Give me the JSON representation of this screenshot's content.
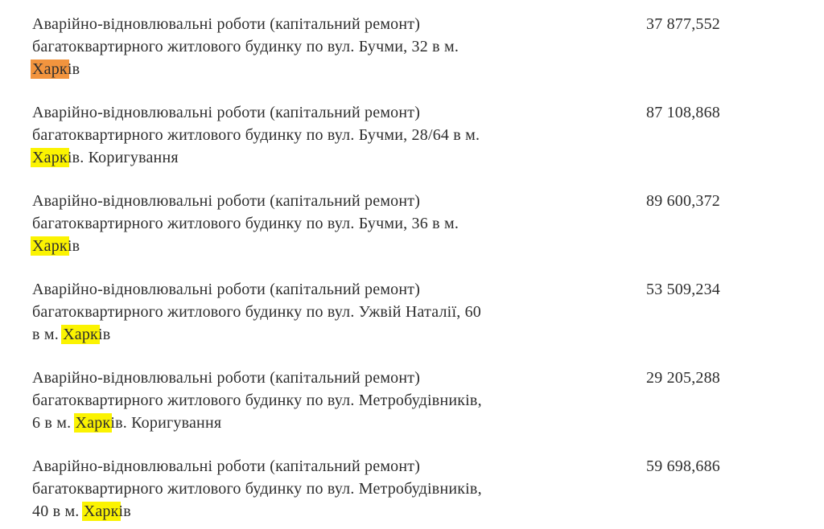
{
  "page": {
    "background": "#ffffff",
    "text_color": "#2e2e2e"
  },
  "search": {
    "term": "Харк",
    "active_highlight_color": "#f2943e",
    "match_highlight_color": "#fbf301"
  },
  "rows": [
    {
      "amount": "37 877,552",
      "lines": [
        [
          {
            "t": "Аварійно-відновлювальні роботи (капітальний ремонт)"
          }
        ],
        [
          {
            "t": "багатоквартирного житлового будинку по вул. Бучми, 32 в м."
          }
        ],
        [
          {
            "t": "Харк",
            "h": "active"
          },
          {
            "t": "ів"
          }
        ]
      ]
    },
    {
      "amount": "87 108,868",
      "lines": [
        [
          {
            "t": "Аварійно-відновлювальні роботи (капітальний ремонт)"
          }
        ],
        [
          {
            "t": "багатоквартирного житлового будинку по вул. Бучми, 28/64 в м."
          }
        ],
        [
          {
            "t": "Харк",
            "h": "match"
          },
          {
            "t": "ів. Коригування"
          }
        ]
      ]
    },
    {
      "amount": "89 600,372",
      "lines": [
        [
          {
            "t": "Аварійно-відновлювальні роботи (капітальний ремонт)"
          }
        ],
        [
          {
            "t": "багатоквартирного житлового будинку по вул. Бучми, 36 в м."
          }
        ],
        [
          {
            "t": "Харк",
            "h": "match"
          },
          {
            "t": "ів"
          }
        ]
      ]
    },
    {
      "amount": "53 509,234",
      "lines": [
        [
          {
            "t": "Аварійно-відновлювальні роботи (капітальний ремонт)"
          }
        ],
        [
          {
            "t": "багатоквартирного житлового будинку по вул. Ужвій Наталії, 60"
          }
        ],
        [
          {
            "t": "в м. "
          },
          {
            "t": "Харк",
            "h": "match"
          },
          {
            "t": "ів"
          }
        ]
      ]
    },
    {
      "amount": "29 205,288",
      "lines": [
        [
          {
            "t": "Аварійно-відновлювальні роботи (капітальний ремонт)"
          }
        ],
        [
          {
            "t": "багатоквартирного житлового будинку по вул. Метробудівників,"
          }
        ],
        [
          {
            "t": "6 в м. "
          },
          {
            "t": "Харк",
            "h": "match"
          },
          {
            "t": "ів. Коригування"
          }
        ]
      ]
    },
    {
      "amount": "59 698,686",
      "lines": [
        [
          {
            "t": "Аварійно-відновлювальні роботи (капітальний ремонт)"
          }
        ],
        [
          {
            "t": "багатоквартирного житлового будинку по вул. Метробудівників,"
          }
        ],
        [
          {
            "t": "40 в м. "
          },
          {
            "t": "Харк",
            "h": "match"
          },
          {
            "t": "ів"
          }
        ]
      ]
    }
  ]
}
